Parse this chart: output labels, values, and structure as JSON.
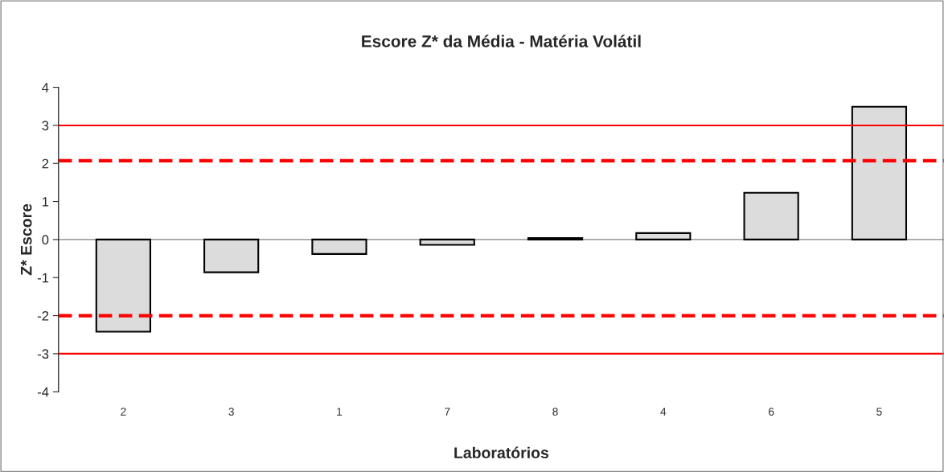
{
  "chart_data": {
    "type": "bar",
    "title": "Escore Z* da Média - Matéria Volátil",
    "xlabel": "Laboratórios",
    "ylabel": "Z* Escore",
    "categories": [
      "2",
      "3",
      "1",
      "7",
      "8",
      "4",
      "6",
      "5"
    ],
    "values": [
      -2.42,
      -0.86,
      -0.38,
      -0.14,
      0.04,
      0.17,
      1.23,
      3.49
    ],
    "color": "#dcdcdc",
    "ylim": [
      -4,
      4
    ],
    "yticks": [
      -4,
      -3,
      -2,
      -1,
      0,
      1,
      2,
      3,
      4
    ],
    "grid": false,
    "legend": false,
    "ref_lines": [
      {
        "axis": "y",
        "value": 3,
        "color": "#ff0000",
        "line_style": "solid"
      },
      {
        "axis": "y",
        "value": 2.07,
        "color": "#ff0000",
        "line_style": "dashed"
      },
      {
        "axis": "y",
        "value": -2,
        "color": "#ff0000",
        "line_style": "dashed"
      },
      {
        "axis": "y",
        "value": -3,
        "color": "#ff0000",
        "line_style": "solid"
      }
    ]
  }
}
